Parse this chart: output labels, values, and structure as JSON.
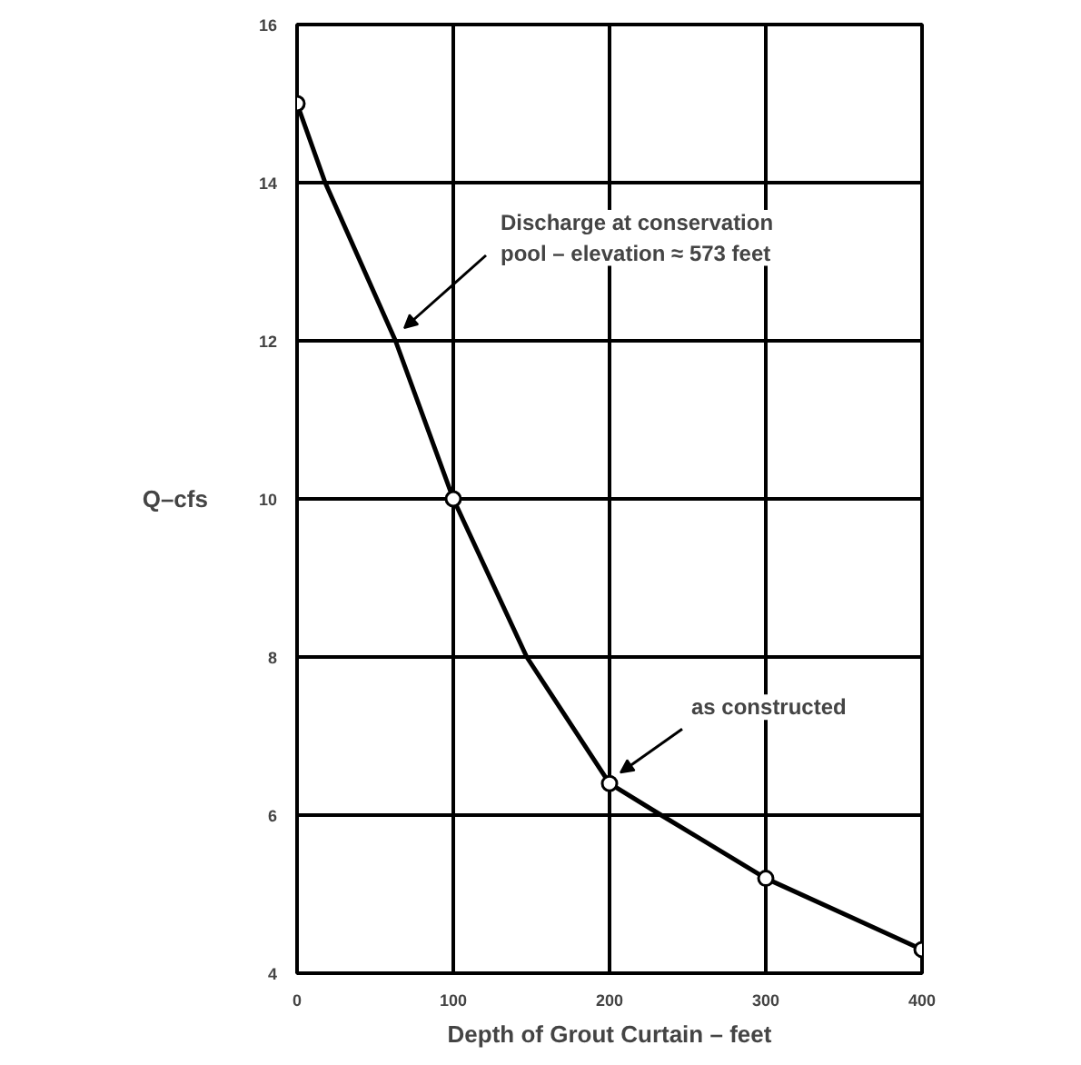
{
  "chart_data": {
    "type": "line",
    "xlabel": "Depth of Grout Curtain – feet",
    "ylabel": "Q–cfs",
    "series": [
      {
        "marker": "none",
        "color": "#000000",
        "x": [
          0,
          18,
          63,
          100,
          147,
          200,
          233,
          300,
          400
        ],
        "values": [
          15,
          14,
          12,
          10,
          8,
          6.4,
          6,
          5.2,
          4.3
        ]
      },
      {
        "type": "scatter",
        "color": "#000000",
        "x": [
          0,
          100,
          200,
          300,
          400
        ],
        "values": [
          15,
          10,
          6.4,
          5.2,
          4.3
        ]
      }
    ],
    "xlim": [
      0,
      400
    ],
    "xticks": [
      0,
      100,
      200,
      300,
      400
    ],
    "ylim": [
      4,
      16
    ],
    "yticks": [
      4,
      6,
      8,
      10,
      12,
      14,
      16
    ],
    "grid": true,
    "marker": "circle",
    "line_style": "solid",
    "annotations": [
      "Discharge at conservation\npool – elevation ≈ 573 feet",
      {
        "text": "as constructed",
        "x": 200,
        "y": 6.4
      }
    ]
  }
}
